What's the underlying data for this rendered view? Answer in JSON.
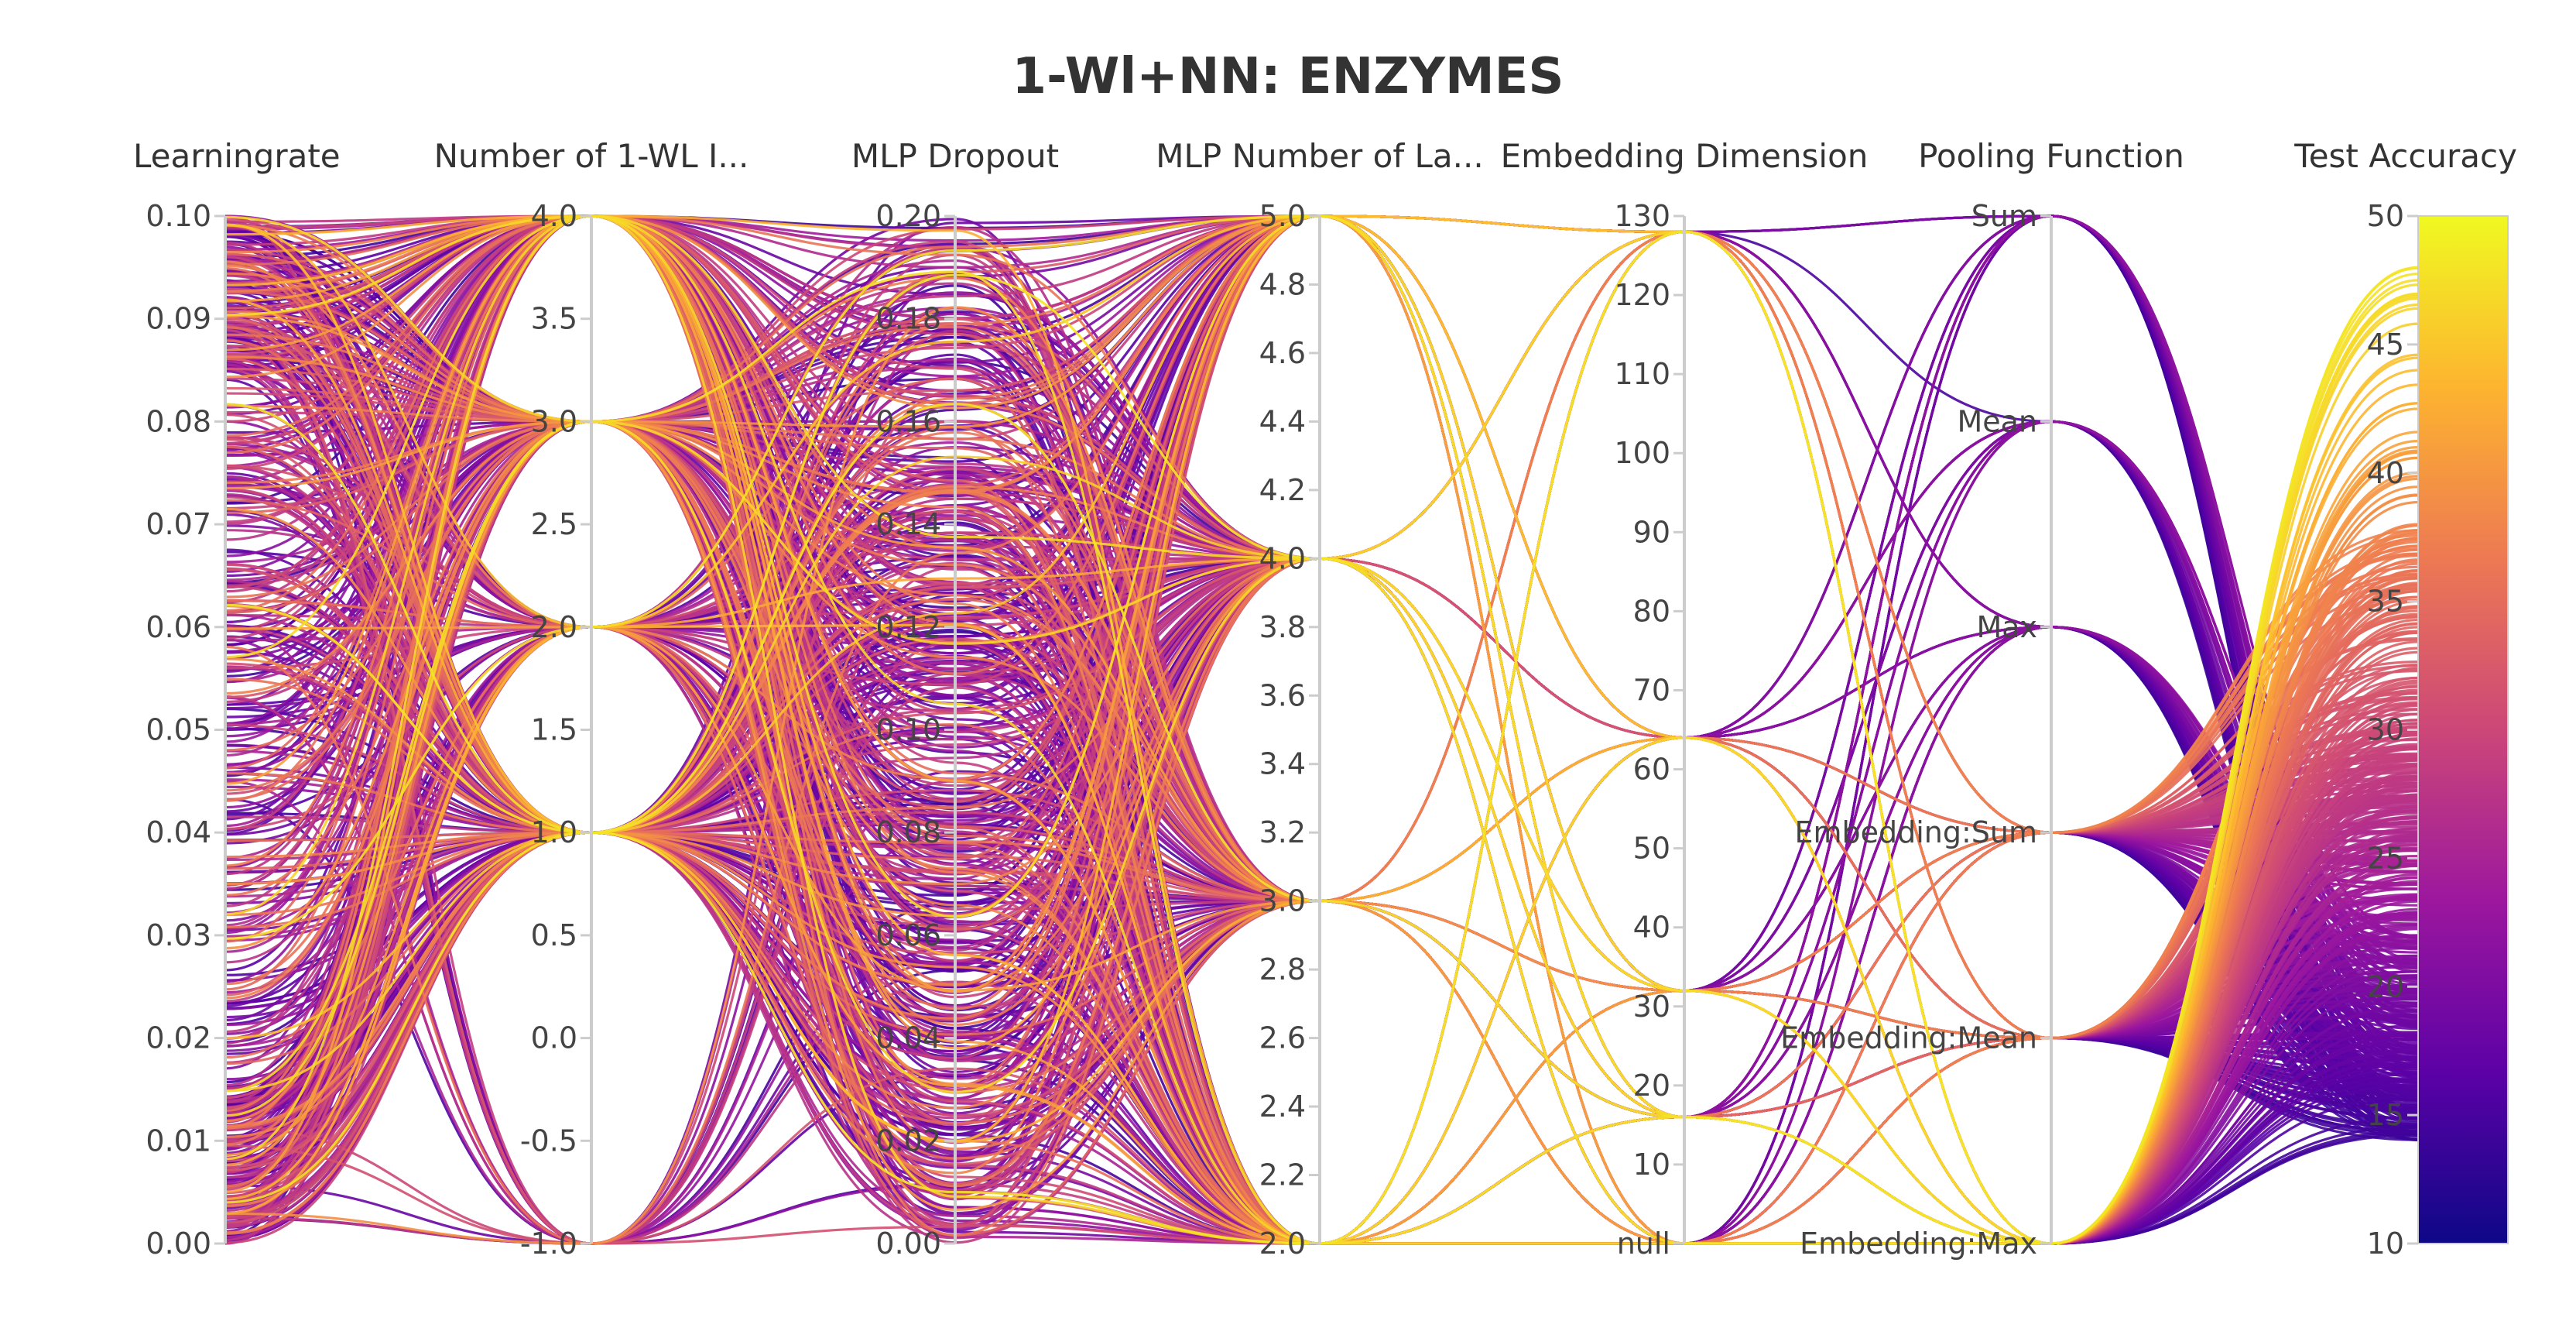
{
  "chart_data": {
    "type": "parallel-coordinates",
    "title": "1-Wl+NN: ENZYMES",
    "axes": [
      {
        "label": "Learningrate",
        "kind": "numeric",
        "range": [
          0,
          0.1
        ],
        "ticks": [
          0,
          0.01,
          0.02,
          0.03,
          0.04,
          0.05,
          0.06,
          0.07,
          0.08,
          0.09,
          0.1
        ],
        "tick_labels": [
          "0.00",
          "0.01",
          "0.02",
          "0.03",
          "0.04",
          "0.05",
          "0.06",
          "0.07",
          "0.08",
          "0.09",
          "0.10"
        ]
      },
      {
        "label": "Number of 1-WL I...",
        "kind": "numeric",
        "range": [
          -1,
          4
        ],
        "ticks": [
          -1,
          -0.5,
          0,
          0.5,
          1,
          1.5,
          2,
          2.5,
          3,
          3.5,
          4
        ],
        "tick_labels": [
          "-1.0",
          "-0.5",
          "0.0",
          "0.5",
          "1.0",
          "1.5",
          "2.0",
          "2.5",
          "3.0",
          "3.5",
          "4.0"
        ],
        "observed_values": [
          -1,
          1,
          2,
          3,
          4
        ]
      },
      {
        "label": "MLP Dropout",
        "kind": "numeric",
        "range": [
          0,
          0.2
        ],
        "ticks": [
          0,
          0.02,
          0.04,
          0.06,
          0.08,
          0.1,
          0.12,
          0.14,
          0.16,
          0.18,
          0.2
        ],
        "tick_labels": [
          "0.00",
          "0.02",
          "0.04",
          "0.06",
          "0.08",
          "0.10",
          "0.12",
          "0.14",
          "0.16",
          "0.18",
          "0.20"
        ]
      },
      {
        "label": "MLP Number of La...",
        "kind": "numeric",
        "range": [
          2,
          5
        ],
        "ticks": [
          2,
          2.2,
          2.4,
          2.6,
          2.8,
          3,
          3.2,
          3.4,
          3.6,
          3.8,
          4,
          4.2,
          4.4,
          4.6,
          4.8,
          5
        ],
        "tick_labels": [
          "2.0",
          "2.2",
          "2.4",
          "2.6",
          "2.8",
          "3.0",
          "3.2",
          "3.4",
          "3.6",
          "3.8",
          "4.0",
          "4.2",
          "4.4",
          "4.6",
          "4.8",
          "5.0"
        ],
        "observed_values": [
          2,
          3,
          4,
          5
        ]
      },
      {
        "label": "Embedding Dimension",
        "kind": "numeric-with-null",
        "range": [
          0,
          130
        ],
        "ticks": [
          10,
          20,
          30,
          40,
          50,
          60,
          70,
          80,
          90,
          100,
          110,
          120,
          130
        ],
        "tick_labels": [
          "10",
          "20",
          "30",
          "40",
          "50",
          "60",
          "70",
          "80",
          "90",
          "100",
          "110",
          "120",
          "130"
        ],
        "null_label": "null",
        "observed_values": [
          "null",
          16,
          32,
          64,
          128
        ]
      },
      {
        "label": "Pooling Function",
        "kind": "categorical",
        "categories": [
          "Embedding:Max",
          "Embedding:Mean",
          "Embedding:Sum",
          "Max",
          "Mean",
          "Sum"
        ]
      },
      {
        "label": "Test Accuracy",
        "kind": "numeric-colorbar",
        "range": [
          10,
          50
        ],
        "ticks": [
          10,
          15,
          20,
          25,
          30,
          35,
          40,
          45,
          50
        ],
        "tick_labels": [
          "10",
          "15",
          "20",
          "25",
          "30",
          "35",
          "40",
          "45",
          "50"
        ],
        "colorscale": "plasma"
      }
    ],
    "colorscale_stops": [
      "#0d0887",
      "#5c01a6",
      "#9c179e",
      "#cc4778",
      "#ed7953",
      "#fdb42f",
      "#f0f921"
    ],
    "line_count_estimate": 600,
    "runs_sample": [
      [
        0.001,
        1,
        0.05,
        3,
        32,
        "Sum",
        18.5
      ],
      [
        0.0,
        4,
        0.19,
        5,
        128,
        "Embedding:Sum",
        26.0
      ],
      [
        0.1,
        3,
        0.16,
        4,
        64,
        "Embedding:Mean",
        22.0
      ],
      [
        0.05,
        2,
        0.1,
        2,
        "null",
        "Max",
        17.0
      ],
      [
        0.02,
        1,
        0.02,
        5,
        16,
        "Embedding:Max",
        44.0
      ],
      [
        0.08,
        4,
        0.12,
        3,
        128,
        "Embedding:Sum",
        30.0
      ],
      [
        0.035,
        1,
        0.07,
        4,
        32,
        "Embedding:Max",
        38.0
      ],
      [
        0.065,
        3,
        0.15,
        2,
        16,
        "Mean",
        19.0
      ],
      [
        0.012,
        2,
        0.03,
        3,
        64,
        "Embedding:Mean",
        27.0
      ],
      [
        0.09,
        4,
        0.18,
        5,
        "null",
        "Embedding:Sum",
        21.0
      ],
      [
        0.004,
        1,
        0.01,
        2,
        128,
        "Embedding:Max",
        48.0
      ],
      [
        0.045,
        -1,
        0.09,
        4,
        16,
        "Embedding:Sum",
        25.0
      ]
    ]
  }
}
